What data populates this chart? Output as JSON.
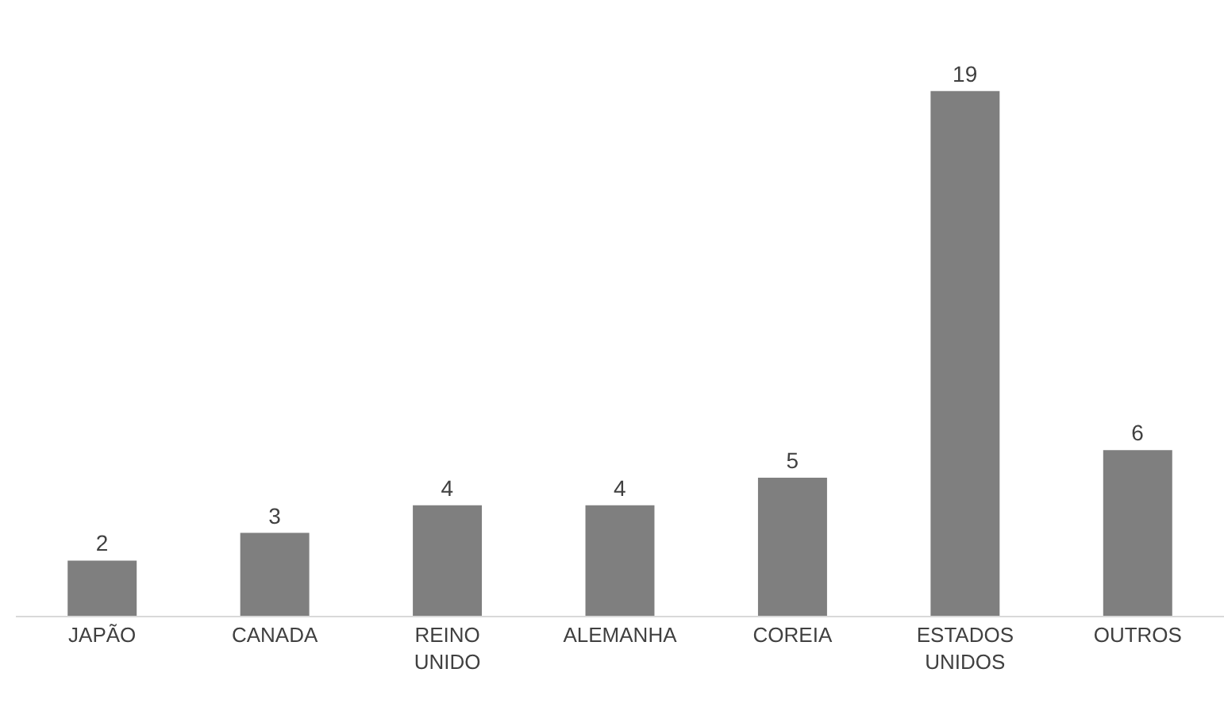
{
  "chart_data": {
    "type": "bar",
    "categories": [
      "JAPÃO",
      "CANADA",
      "REINO UNIDO",
      "ALEMANHA",
      "COREIA",
      "ESTADOS UNIDOS",
      "OUTROS"
    ],
    "values": [
      2,
      3,
      4,
      4,
      5,
      19,
      6
    ],
    "color": "#7f7f7f",
    "data_labels": true
  }
}
